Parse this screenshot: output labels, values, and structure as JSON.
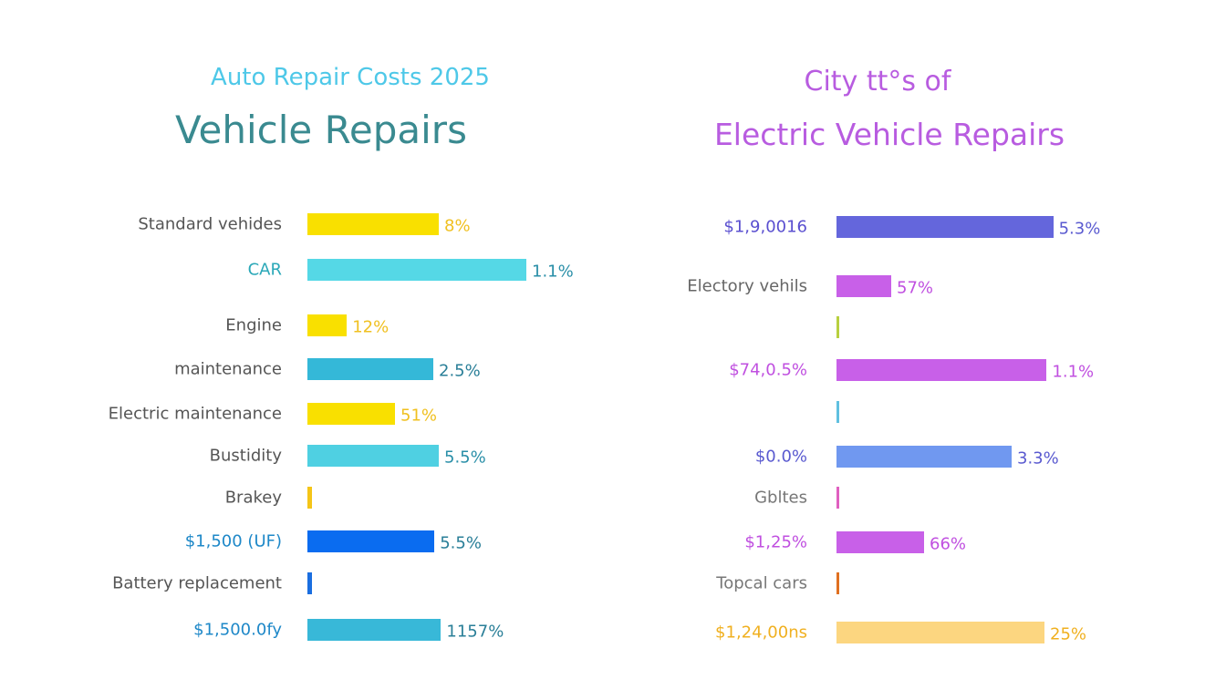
{
  "chart_data": [
    {
      "type": "bar",
      "orientation": "horizontal",
      "subtitle": "Auto Repair Costs 2025",
      "title": "Vehicle Repairs",
      "subtitle_color": "#4ec8e8",
      "title_color": "#3a8a90",
      "grid": false,
      "bars": [
        {
          "label": "Standard vehides",
          "value_label": "8%",
          "fraction": 0.6,
          "color": "#f9e000",
          "label_color": "#555555",
          "value_color": "#f0c020"
        },
        {
          "label": "CAR",
          "value_label": "1.1%",
          "fraction": 1.0,
          "color": "#55d8e6",
          "label_color": "#2aa8b8",
          "value_color": "#2a8fa8"
        },
        {
          "label": "Engine",
          "value_label": "12%",
          "fraction": 0.18,
          "color": "#f9e000",
          "label_color": "#555555",
          "value_color": "#f0c020"
        },
        {
          "label": "maintenance",
          "value_label": "2.5%",
          "fraction": 0.575,
          "color": "#34b8d8",
          "label_color": "#555555",
          "value_color": "#2a7f98"
        },
        {
          "label": "Electric maintenance",
          "value_label": "51%",
          "fraction": 0.4,
          "color": "#f9e000",
          "label_color": "#555555",
          "value_color": "#f0c020"
        },
        {
          "label": "Bustidity",
          "value_label": "5.5%",
          "fraction": 0.6,
          "color": "#4fd0e2",
          "label_color": "#555555",
          "value_color": "#2a8fa8"
        },
        {
          "label": "Brakey",
          "value_label": "",
          "fraction": 0.02,
          "color": "#f5c518",
          "label_color": "#555555",
          "value_color": "#2a8fa8"
        },
        {
          "label": "$1,500 (UF)",
          "value_label": "5.5%",
          "fraction": 0.58,
          "color": "#0a6cf0",
          "label_color": "#1e88c8",
          "value_color": "#2a7f98"
        },
        {
          "label": "Battery replacement",
          "value_label": "",
          "fraction": 0.02,
          "color": "#1a6ee0",
          "label_color": "#555555",
          "value_color": "#2a8fa8"
        },
        {
          "label": "$1,500.0fy",
          "value_label": "1157%",
          "fraction": 0.61,
          "color": "#38b8d8",
          "label_color": "#1e88c8",
          "value_color": "#2a7f98"
        }
      ]
    },
    {
      "type": "bar",
      "orientation": "horizontal",
      "subtitle": "City tt°s of",
      "title": "Electric Vehicle Repairs",
      "subtitle_color": "#b85ce0",
      "title_color": "#b85ce0",
      "grid": false,
      "bars": [
        {
          "label": "$1,9,0016",
          "value_label": "5.3%",
          "fraction": 0.99,
          "color": "#6466dc",
          "label_color": "#5a4fd0",
          "value_color": "#5a5ad0"
        },
        {
          "label": "Electory vehils",
          "value_label": "57%",
          "fraction": 0.25,
          "color": "#c860e8",
          "label_color": "#666666",
          "value_color": "#c050e0"
        },
        {
          "label": "",
          "value_label": "",
          "fraction": 0.01,
          "color": "#b8d040",
          "label_color": "#666666",
          "value_color": "#666666"
        },
        {
          "label": "$74,0.5%",
          "value_label": "1.1%",
          "fraction": 0.96,
          "color": "#c860e8",
          "label_color": "#c050e0",
          "value_color": "#c050e0"
        },
        {
          "label": "",
          "value_label": "",
          "fraction": 0.01,
          "color": "#60c0e0",
          "label_color": "#666666",
          "value_color": "#666666"
        },
        {
          "label": "$0.0%",
          "value_label": "3.3%",
          "fraction": 0.8,
          "color": "#7098f0",
          "label_color": "#5a5ad0",
          "value_color": "#5a5ad0"
        },
        {
          "label": "Gbltes",
          "value_label": "",
          "fraction": 0.01,
          "color": "#e060c0",
          "label_color": "#777777",
          "value_color": "#666666"
        },
        {
          "label": "$1,25%",
          "value_label": "66%",
          "fraction": 0.4,
          "color": "#c860e8",
          "label_color": "#c050e0",
          "value_color": "#c050e0"
        },
        {
          "label": "Topcal cars",
          "value_label": "",
          "fraction": 0.01,
          "color": "#e07020",
          "label_color": "#777777",
          "value_color": "#666666"
        },
        {
          "label": "$1,24,00ns",
          "value_label": "25%",
          "fraction": 0.95,
          "color": "#fcd680",
          "label_color": "#f0b020",
          "value_color": "#f0b020"
        }
      ]
    }
  ]
}
